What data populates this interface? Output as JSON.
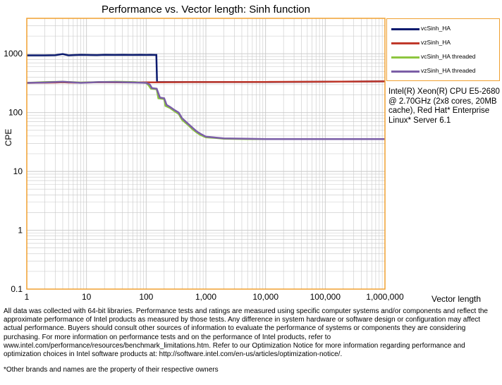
{
  "chart_data": {
    "type": "line",
    "title": "Performance vs. Vector length: Sinh function",
    "xlabel": "Vector length",
    "ylabel": "CPE",
    "x_scale": "log",
    "y_scale": "log",
    "xlim": [
      1,
      1000000
    ],
    "ylim": [
      0.1,
      4000
    ],
    "x_ticks": [
      "1",
      "10",
      "100",
      "1,000",
      "10,000",
      "100,000",
      "1,000,000"
    ],
    "y_ticks": [
      "0.1",
      "1",
      "10",
      "100",
      "1000"
    ],
    "grid": true,
    "legend_position": "right",
    "series": [
      {
        "name": "vcSinh_HA",
        "color": "#0A1A6E",
        "x": [
          1,
          2,
          3,
          4,
          5,
          6,
          8,
          10,
          15,
          20,
          30,
          40,
          60,
          80,
          100,
          120,
          140,
          148,
          152,
          200,
          300,
          500,
          1000,
          3000,
          10000,
          100000,
          1000000
        ],
        "y": [
          940,
          940,
          945,
          990,
          940,
          950,
          960,
          955,
          950,
          960,
          955,
          960,
          955,
          958,
          955,
          958,
          955,
          955,
          330,
          330,
          330,
          330,
          330,
          330,
          330,
          335,
          340
        ]
      },
      {
        "name": "vzSinh_HA",
        "color": "#C0392B",
        "x": [
          1,
          2,
          3,
          4,
          5,
          8,
          10,
          20,
          50,
          100,
          150,
          200,
          500,
          1000,
          10000,
          100000,
          1000000
        ],
        "y": [
          320,
          322,
          325,
          328,
          325,
          322,
          325,
          328,
          326,
          327,
          327,
          328,
          330,
          330,
          332,
          335,
          340
        ]
      },
      {
        "name": "vcSinh_HA threaded",
        "color": "#8DC63F",
        "x": [
          1,
          2,
          4,
          8,
          16,
          32,
          64,
          100,
          110,
          120,
          150,
          160,
          200,
          210,
          250,
          300,
          350,
          400,
          500,
          600,
          700,
          800,
          1000,
          1500,
          2000,
          5000,
          10000,
          100000,
          1000000
        ],
        "y": [
          320,
          330,
          335,
          325,
          330,
          335,
          330,
          320,
          290,
          255,
          250,
          175,
          170,
          130,
          120,
          105,
          95,
          75,
          62,
          52,
          46,
          42,
          38,
          37,
          36,
          35.5,
          35.5,
          35.5,
          35.5
        ]
      },
      {
        "name": "vzSinh_HA threaded",
        "color": "#7B5EA7",
        "x": [
          1,
          2,
          4,
          8,
          16,
          32,
          64,
          100,
          115,
          125,
          150,
          170,
          200,
          220,
          250,
          300,
          350,
          400,
          500,
          600,
          700,
          800,
          1000,
          1500,
          2000,
          5000,
          10000,
          100000,
          1000000
        ],
        "y": [
          320,
          325,
          335,
          320,
          330,
          330,
          325,
          320,
          300,
          260,
          255,
          180,
          175,
          135,
          125,
          110,
          100,
          80,
          65,
          55,
          48,
          44,
          39,
          37.5,
          36.5,
          36,
          35.5,
          35.5,
          35.5
        ]
      }
    ]
  },
  "annotation": "Intel(R) Xeon(R) CPU E5-2680 @ 2.70GHz (2x8 cores, 20MB cache), Red Hat* Enterprise Linux* Server 6.1",
  "disclaimer": "All data was collected with 64-bit libraries. Performance tests and ratings are measured using specific computer systems and/or components and reflect the approximate performance of Intel products as measured by those tests. Any difference in system hardware or software design or configuration may affect actual performance. Buyers should consult other sources of information to evaluate the performance of systems or components they are considering purchasing. For more information on performance tests and on the performance of Intel products, refer to www.intel.com/performance/resources/benchmark_limitations.htm. Refer to our Optimization Notice for more information regarding performance and optimization choices in Intel software products at: http://software.intel.com/en-us/articles/optimization-notice/.",
  "footnote": "*Other brands and names are the property of their respective owners",
  "colors": {
    "frame": "#F0A030",
    "grid": "#C8C8C8"
  }
}
